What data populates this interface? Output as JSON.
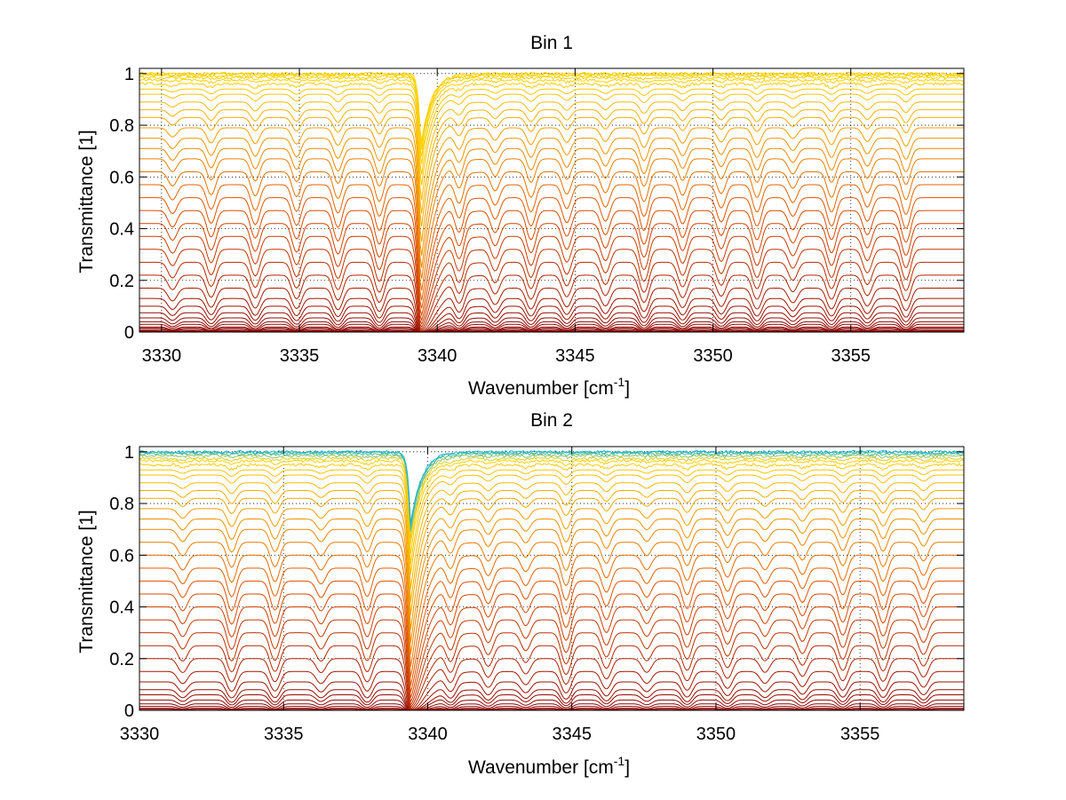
{
  "figure": {
    "background": "#ffffff"
  },
  "chart_data": [
    {
      "type": "line",
      "title": "Bin 1",
      "xlabel": "Wavenumber [cm",
      "xlabel_sup": "-1",
      "xlabel_end": "]",
      "ylabel": "Transmittance [1]",
      "xlim": [
        3329.2,
        3359.1
      ],
      "ylim": [
        0,
        1.02
      ],
      "xticks": [
        3330,
        3335,
        3340,
        3345,
        3350,
        3355
      ],
      "yticks": [
        0,
        0.2,
        0.4,
        0.6,
        0.8,
        1
      ],
      "grid": true,
      "grid_style": "dotted",
      "main_dip_x": 3339.4,
      "dip_positions": [
        3330.4,
        3331.8,
        3333.4,
        3334.9,
        3336.4,
        3337.9,
        3339.4,
        3340.8,
        3342.1,
        3343.4,
        3344.7,
        3346.1,
        3347.5,
        3348.9,
        3350.3,
        3351.6,
        3352.9,
        3354.3,
        3355.6,
        3357.0
      ],
      "series_levels": [
        0.0,
        0.002,
        0.005,
        0.01,
        0.015,
        0.02,
        0.03,
        0.04,
        0.055,
        0.075,
        0.1,
        0.13,
        0.17,
        0.22,
        0.27,
        0.32,
        0.37,
        0.42,
        0.47,
        0.52,
        0.57,
        0.62,
        0.67,
        0.71,
        0.75,
        0.79,
        0.83,
        0.86,
        0.89,
        0.92,
        0.94,
        0.96,
        0.975,
        0.985,
        0.992,
        0.997,
        1.0
      ],
      "color_low": "#8b0000",
      "color_mid": "#e05000",
      "color_high": "#ffd000"
    },
    {
      "type": "line",
      "title": "Bin 2",
      "xlabel": "Wavenumber [cm",
      "xlabel_sup": "-1",
      "xlabel_end": "]",
      "ylabel": "Transmittance [1]",
      "xlim": [
        3330,
        3358.6
      ],
      "ylim": [
        0,
        1.02
      ],
      "xticks": [
        3330,
        3335,
        3340,
        3345,
        3350,
        3355
      ],
      "yticks": [
        0,
        0.2,
        0.4,
        0.6,
        0.8,
        1
      ],
      "grid": true,
      "grid_style": "dotted",
      "main_dip_x": 3339.4,
      "dip_positions": [
        3331.5,
        3333.2,
        3334.7,
        3336.3,
        3337.9,
        3339.4,
        3340.8,
        3342.1,
        3343.4,
        3344.8,
        3346.2,
        3347.6,
        3349.0,
        3350.4,
        3351.7,
        3353.0,
        3354.4,
        3355.8,
        3357.2
      ],
      "series_levels": [
        0.0,
        0.004,
        0.008,
        0.015,
        0.025,
        0.04,
        0.06,
        0.08,
        0.11,
        0.15,
        0.2,
        0.25,
        0.3,
        0.35,
        0.4,
        0.45,
        0.5,
        0.55,
        0.6,
        0.65,
        0.7,
        0.74,
        0.78,
        0.82,
        0.85,
        0.88,
        0.91,
        0.93,
        0.95,
        0.965,
        0.975,
        0.985,
        0.992,
        0.997,
        1.0
      ],
      "color_low": "#8b0000",
      "color_mid": "#e05000",
      "color_high": "#ffd000",
      "color_top": "#1fb6c8"
    }
  ]
}
